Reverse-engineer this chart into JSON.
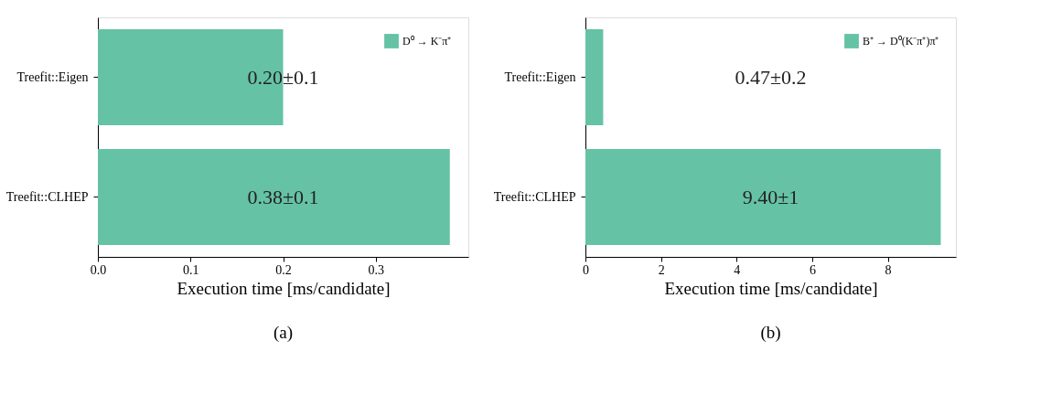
{
  "chart_data": [
    {
      "type": "bar",
      "orientation": "horizontal",
      "categories": [
        "Treefit::Eigen",
        "Treefit::CLHEP"
      ],
      "xlabel": "Execution time [ms/candidate]",
      "xlim": [
        0,
        0.4
      ],
      "xticks": [
        {
          "value": 0,
          "label": "0.0"
        },
        {
          "value": 0.1,
          "label": "0.1"
        },
        {
          "value": 0.2,
          "label": "0.2"
        },
        {
          "value": 0.3,
          "label": "0.3"
        }
      ],
      "grid": false,
      "legend": "top right",
      "annotations": [
        "(a)"
      ],
      "series": [
        {
          "name": "D⁰ → K⁻π⁺",
          "color": "#66c2a5",
          "values": [
            0.2,
            0.38
          ],
          "value_labels": [
            "0.20±0.1",
            "0.38±0.1"
          ]
        }
      ]
    },
    {
      "type": "bar",
      "orientation": "horizontal",
      "categories": [
        "Treefit::Eigen",
        "Treefit::CLHEP"
      ],
      "xlabel": "Execution time [ms/candidate]",
      "xlim": [
        0,
        9.8
      ],
      "xticks": [
        0,
        2,
        4,
        6,
        8
      ],
      "grid": false,
      "legend": "top right",
      "annotations": [
        "(b)"
      ],
      "series": [
        {
          "name": "B⁺ → D⁰(K⁻π⁺)π⁺",
          "color": "#66c2a5",
          "values": [
            0.47,
            9.4
          ],
          "value_labels": [
            "0.47±0.2",
            "9.40±1"
          ]
        }
      ]
    }
  ]
}
